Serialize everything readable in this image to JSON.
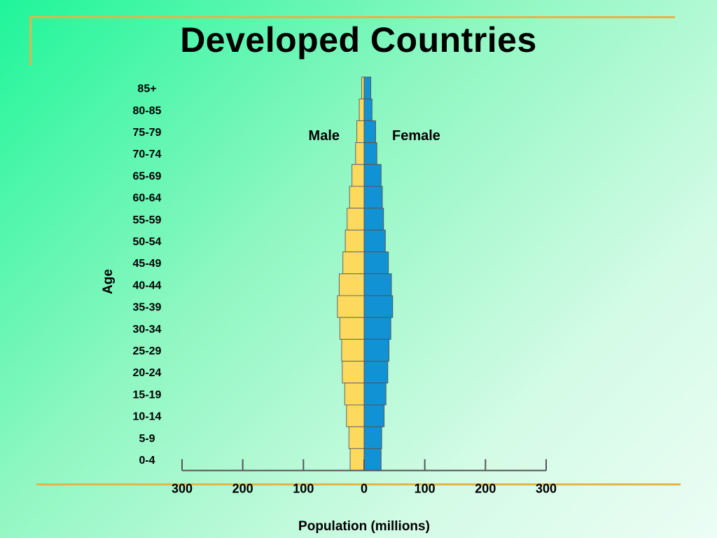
{
  "slide": {
    "title": "Developed Countries"
  },
  "colors": {
    "male": "#fdd95e",
    "female": "#1192d4",
    "rule": "#e2b54a",
    "axis": "#555555"
  },
  "chart_data": {
    "type": "bar",
    "orientation": "horizontal-population-pyramid",
    "title": "Developed Countries",
    "xlabel": "Population (millions)",
    "ylabel": "Age",
    "xlim": [
      -300,
      300
    ],
    "xticks": [
      300,
      200,
      100,
      0,
      100,
      200,
      300
    ],
    "categories": [
      "85+",
      "80-85",
      "75-79",
      "70-74",
      "65-69",
      "60-64",
      "55-59",
      "50-54",
      "45-49",
      "40-44",
      "35-39",
      "30-34",
      "25-29",
      "20-24",
      "15-19",
      "10-14",
      "5-9",
      "0-4"
    ],
    "series": [
      {
        "name": "Male",
        "values": [
          4,
          8,
          12,
          14,
          20,
          24,
          28,
          31,
          35,
          41,
          44,
          40,
          37,
          36,
          32,
          29,
          25,
          23
        ]
      },
      {
        "name": "Female",
        "values": [
          11,
          13,
          19,
          21,
          28,
          30,
          32,
          35,
          40,
          45,
          47,
          44,
          41,
          39,
          36,
          33,
          29,
          28
        ]
      }
    ]
  }
}
